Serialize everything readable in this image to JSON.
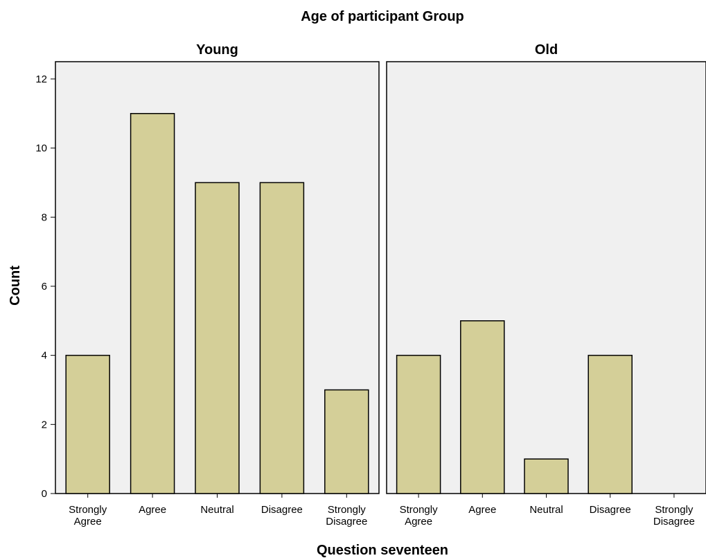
{
  "chart_data": {
    "type": "bar",
    "title": "Age of participant Group",
    "xlabel": "Question seventeen",
    "ylabel": "Count",
    "ylim": [
      0,
      12.5
    ],
    "yticks": [
      0,
      2,
      4,
      6,
      8,
      10,
      12
    ],
    "categories": [
      [
        "Strongly",
        "Agree"
      ],
      [
        "Agree"
      ],
      [
        "Neutral"
      ],
      [
        "Disagree"
      ],
      [
        "Strongly",
        "Disagree"
      ]
    ],
    "panels": [
      {
        "name": "Young",
        "values": [
          4,
          11,
          9,
          9,
          3
        ]
      },
      {
        "name": "Old",
        "values": [
          4,
          5,
          1,
          4,
          0
        ]
      }
    ],
    "colors": {
      "bar_fill": "#d4cf98",
      "bar_stroke": "#000000",
      "panel_bg": "#f0f0f0",
      "panel_border": "#000000"
    },
    "grid": false
  }
}
